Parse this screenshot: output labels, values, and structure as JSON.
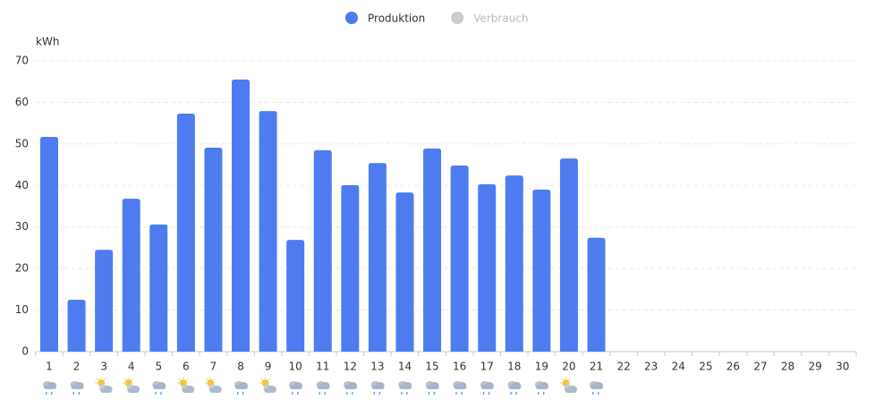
{
  "chart_data": {
    "type": "bar",
    "y_label": "kWh",
    "categories": [
      "1",
      "2",
      "3",
      "4",
      "5",
      "6",
      "7",
      "8",
      "9",
      "10",
      "11",
      "12",
      "13",
      "14",
      "15",
      "16",
      "17",
      "18",
      "19",
      "20",
      "21",
      "22",
      "23",
      "24",
      "25",
      "26",
      "27",
      "28",
      "29",
      "30"
    ],
    "series": [
      {
        "name": "Produktion",
        "color": "#4e7cf0",
        "values": [
          51.7,
          12.5,
          24.5,
          36.8,
          30.6,
          57.3,
          49.1,
          65.5,
          57.9,
          26.9,
          48.5,
          40.1,
          45.4,
          38.3,
          48.9,
          44.8,
          40.3,
          42.4,
          39,
          46.5,
          27.4,
          null,
          null,
          null,
          null,
          null,
          null,
          null,
          null,
          null
        ]
      },
      {
        "name": "Verbrauch",
        "color": "#cccccc",
        "values": [
          null,
          null,
          null,
          null,
          null,
          null,
          null,
          null,
          null,
          null,
          null,
          null,
          null,
          null,
          null,
          null,
          null,
          null,
          null,
          null,
          null,
          null,
          null,
          null,
          null,
          null,
          null,
          null,
          null,
          null
        ]
      }
    ],
    "ylim": [
      0,
      70
    ],
    "yticks": [
      0,
      10,
      20,
      30,
      40,
      50,
      60,
      70
    ],
    "grid": true
  }
}
